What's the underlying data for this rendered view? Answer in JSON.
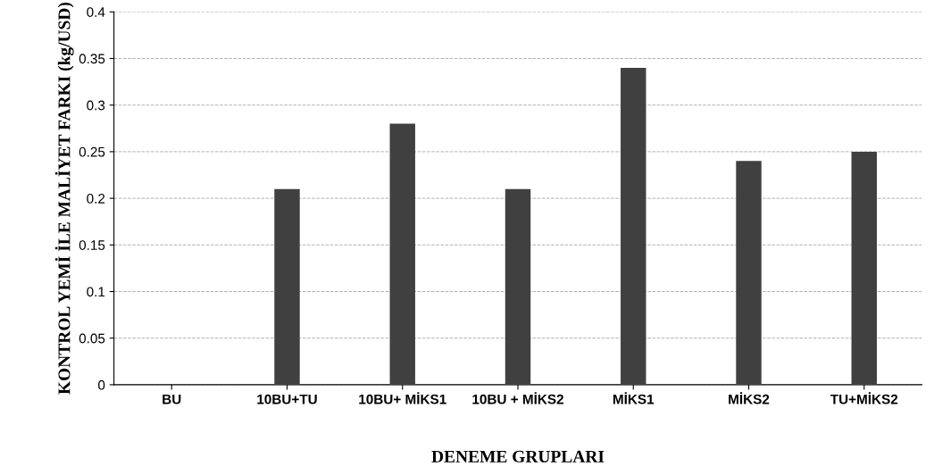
{
  "chart_data": {
    "type": "bar",
    "xlabel": "DENEME GRUPLARI",
    "ylabel": "KONTROL YEMİ İLE MALİYET FARKI (kg/USD)",
    "categories": [
      "BU",
      "10BU+TU",
      "10BU+ MİKS1",
      "10BU + MİKS2",
      "MİKS1",
      "MİKS2",
      "TU+MİKS2"
    ],
    "values": [
      0,
      0.21,
      0.28,
      0.21,
      0.34,
      0.24,
      0.25
    ],
    "color": "#404040",
    "ylim": [
      0,
      0.4
    ],
    "yticks": [
      0,
      0.05,
      0.1,
      0.15,
      0.2,
      0.25,
      0.3,
      0.35,
      0.4
    ],
    "grid": "y"
  }
}
